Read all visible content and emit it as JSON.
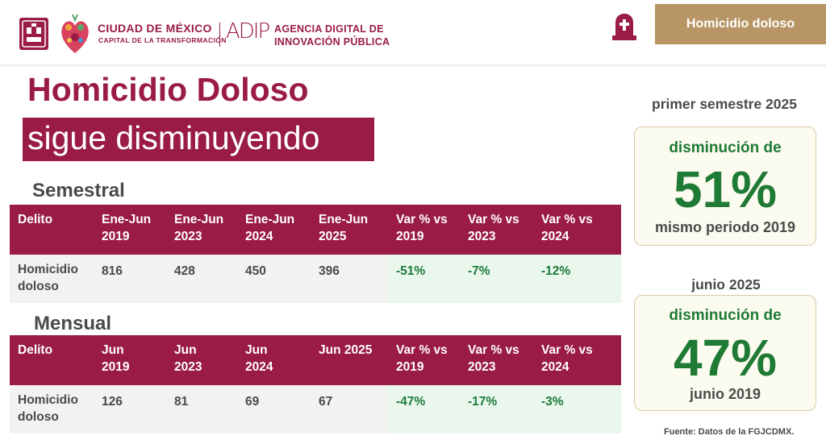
{
  "header": {
    "org_name": "CIUDAD DE MÉXICO",
    "org_sub": "CAPITAL DE LA TRANSFORMACIÓN",
    "adip_logo": "ADIP",
    "agency_line1": "AGENCIA DIGITAL DE",
    "agency_line2": "INNOVACIÓN PÚBLICA",
    "tag": "Homicidio doloso",
    "icons": [
      "cdmx-shield-logo",
      "heart-logo",
      "tombstone-icon"
    ],
    "colors": {
      "brand": "#9a1c46",
      "gold": "#b89565",
      "green": "#1f7a35"
    }
  },
  "title": {
    "line1": "Homicidio Doloso",
    "line2": "sigue disminuyendo"
  },
  "semestral": {
    "label": "Semestral",
    "headers": [
      [
        "Delito",
        ""
      ],
      [
        "Ene-Jun",
        "2019"
      ],
      [
        "Ene-Jun",
        "2023"
      ],
      [
        "Ene-Jun",
        "2024"
      ],
      [
        "Ene-Jun",
        "2025"
      ],
      [
        "Var % vs",
        "2019"
      ],
      [
        "Var % vs",
        "2023"
      ],
      [
        "Var % vs",
        "2024"
      ]
    ],
    "row": {
      "delito_line1": "Homicidio",
      "delito_line2": "doloso",
      "values": [
        "816",
        "428",
        "450",
        "396",
        "-51%",
        "-7%",
        "-12%"
      ]
    }
  },
  "mensual": {
    "label": "Mensual",
    "headers": [
      [
        "Delito",
        ""
      ],
      [
        "Jun",
        "2019"
      ],
      [
        "Jun",
        "2023"
      ],
      [
        "Jun",
        "2024"
      ],
      [
        "Jun 2025",
        ""
      ],
      [
        "Var % vs",
        "2019"
      ],
      [
        "Var % vs",
        "2023"
      ],
      [
        "Var % vs",
        "2024"
      ]
    ],
    "row": {
      "delito_line1": "Homicidio",
      "delito_line2": "doloso",
      "values": [
        "126",
        "81",
        "69",
        "67",
        "-47%",
        "-17%",
        "-3%"
      ]
    }
  },
  "side": {
    "box1": {
      "heading": "primer semestre 2025",
      "top": "disminución de",
      "big": "51%",
      "bottom": "mismo periodo 2019"
    },
    "box2": {
      "heading": "junio 2025",
      "top": "disminución de",
      "big": "47%",
      "bottom": "junio 2019"
    }
  },
  "source": "Fuente: Datos de la FGJCDMX."
}
